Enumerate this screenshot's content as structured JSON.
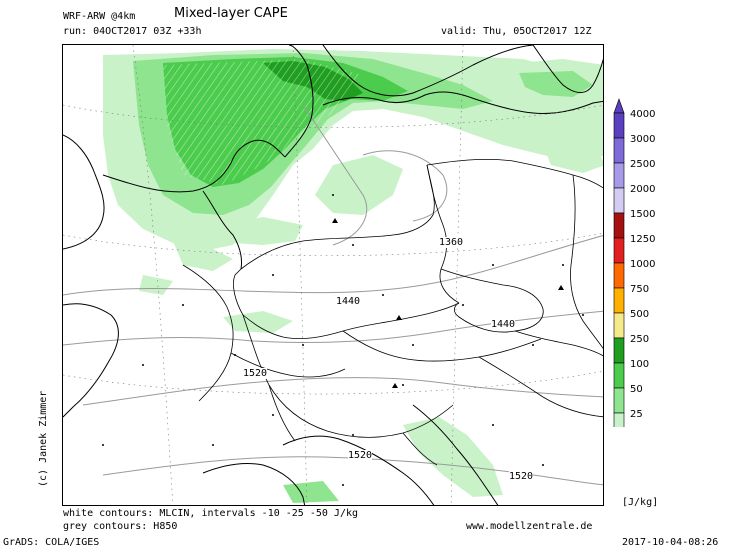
{
  "header": {
    "model": "WRF-ARW @4km",
    "title": "Mixed-layer CAPE",
    "run": "run: 04OCT2017 03Z +33h",
    "valid": "valid: Thu, 05OCT2017 12Z"
  },
  "credit": "(c) Janek Zimmer",
  "footer": {
    "white_contours": "white contours: MLCIN, intervals -10 -25 -50 J/kg",
    "grey_contours": "grey contours: H850",
    "website": "www.modellzentrale.de",
    "software": "GrADS: COLA/IGES",
    "timestamp": "2017-10-04-08:26"
  },
  "map": {
    "contour_labels": [
      "1360",
      "1440",
      "1440",
      "1520",
      "1520",
      "1520"
    ]
  },
  "legend": {
    "unit": "[J/kg]",
    "levels": [
      {
        "label": "4000",
        "color": "#5a3fbf"
      },
      {
        "label": "3000",
        "color": "#7e6ad8"
      },
      {
        "label": "2500",
        "color": "#a79ae8"
      },
      {
        "label": "2000",
        "color": "#d4ccf2"
      },
      {
        "label": "1500",
        "color": "#a51010"
      },
      {
        "label": "1250",
        "color": "#e32020"
      },
      {
        "label": "1000",
        "color": "#ff6a00"
      },
      {
        "label": "750",
        "color": "#ffb000"
      },
      {
        "label": "500",
        "color": "#f5ea8a"
      },
      {
        "label": "250",
        "color": "#1f9e1f"
      },
      {
        "label": "100",
        "color": "#4ccc4c"
      },
      {
        "label": "50",
        "color": "#8fe48f"
      },
      {
        "label": "25",
        "color": "#c9f2c9"
      }
    ]
  },
  "colors": {
    "cape_light": "#c9f2c9",
    "cape_mid": "#8fe48f",
    "cape_strong": "#4ccc4c",
    "cape_dark": "#1f9e1f",
    "coast": "#000000",
    "borders": "#000000",
    "h850": "#9a9a9a"
  }
}
